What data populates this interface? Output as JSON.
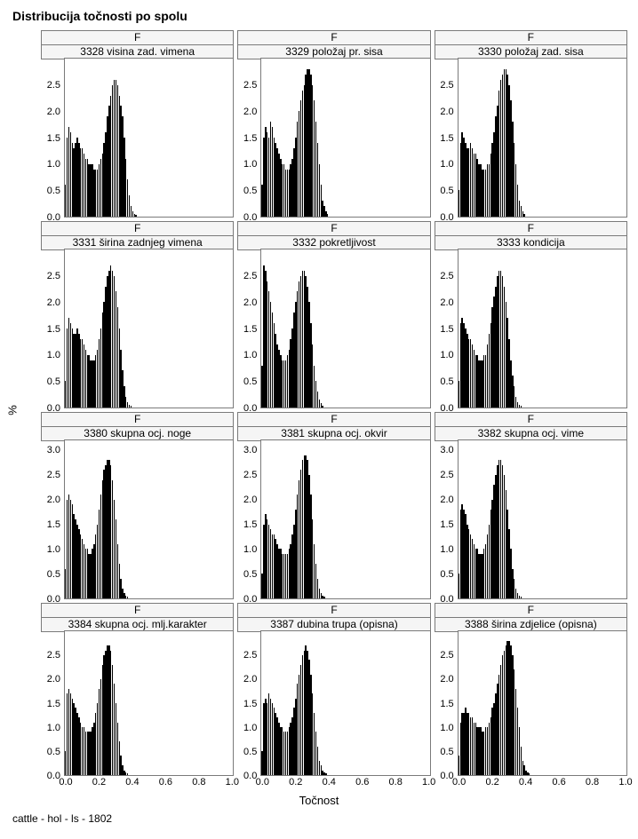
{
  "title": "Distribucija točnosti po spolu",
  "footer": "cattle - hol - ls - 1802",
  "xaxis_label": "Točnost",
  "yaxis_label": "%",
  "layout": {
    "rows": 4,
    "cols": 3
  },
  "colors": {
    "background": "#ffffff",
    "panel_border": "#7a7a7a",
    "header_bg": "#f5f5f5",
    "bar_fill": "#000000",
    "text": "#000000"
  },
  "typography": {
    "title_fontsize": 14,
    "title_weight": "bold",
    "header_fontsize": 12,
    "tick_fontsize": 11,
    "axis_label_fontsize": 13,
    "footer_fontsize": 12,
    "family": "Arial"
  },
  "x": {
    "lim": [
      0.0,
      1.0
    ],
    "ticks": [
      0.0,
      0.2,
      0.4,
      0.6,
      0.8,
      1.0
    ],
    "tick_labels": [
      "0.0",
      "0.2",
      "0.4",
      "0.6",
      "0.8",
      "1.0"
    ]
  },
  "bin_edges_step": 0.01,
  "panels": [
    {
      "group": "F",
      "label": "3328 visina zad. vimena",
      "type": "histogram",
      "ylim": [
        0.0,
        3.0
      ],
      "yticks": [
        0.0,
        0.5,
        1.0,
        1.5,
        2.0,
        2.5
      ],
      "values": [
        0.6,
        1.5,
        1.7,
        1.6,
        1.4,
        1.3,
        1.4,
        1.5,
        1.4,
        1.3,
        1.3,
        1.2,
        1.1,
        1.1,
        1.0,
        1.0,
        1.0,
        0.9,
        0.9,
        0.9,
        1.0,
        1.1,
        1.2,
        1.4,
        1.6,
        1.9,
        2.1,
        2.3,
        2.5,
        2.6,
        2.6,
        2.5,
        2.3,
        2.1,
        1.9,
        1.5,
        1.1,
        0.7,
        0.4,
        0.2,
        0.1,
        0.05,
        0.03,
        0.0,
        0.0,
        0.0,
        0.0,
        0.0,
        0.0,
        0.0
      ]
    },
    {
      "group": "F",
      "label": "3329 položaj pr. sisa",
      "type": "histogram",
      "ylim": [
        0.0,
        3.0
      ],
      "yticks": [
        0.0,
        0.5,
        1.0,
        1.5,
        2.0,
        2.5
      ],
      "values": [
        0.6,
        1.5,
        1.7,
        1.6,
        1.5,
        1.8,
        1.7,
        1.5,
        1.4,
        1.3,
        1.2,
        1.1,
        1.0,
        1.0,
        0.9,
        0.9,
        0.9,
        1.0,
        1.1,
        1.3,
        1.5,
        1.8,
        2.0,
        2.2,
        2.4,
        2.5,
        2.7,
        2.8,
        2.8,
        2.7,
        2.5,
        2.2,
        1.8,
        1.4,
        1.0,
        0.6,
        0.3,
        0.2,
        0.1,
        0.05,
        0.0,
        0.0,
        0.0,
        0.0,
        0.0,
        0.0,
        0.0,
        0.0,
        0.0,
        0.0
      ]
    },
    {
      "group": "F",
      "label": "3330 položaj zad. sisa",
      "type": "histogram",
      "ylim": [
        0.0,
        3.0
      ],
      "yticks": [
        0.0,
        0.5,
        1.0,
        1.5,
        2.0,
        2.5
      ],
      "values": [
        0.5,
        1.4,
        1.6,
        1.5,
        1.4,
        1.3,
        1.3,
        1.4,
        1.3,
        1.2,
        1.2,
        1.1,
        1.0,
        1.0,
        0.9,
        0.9,
        0.9,
        1.0,
        1.0,
        1.2,
        1.4,
        1.6,
        1.9,
        2.1,
        2.4,
        2.6,
        2.7,
        2.8,
        2.8,
        2.7,
        2.5,
        2.2,
        1.8,
        1.4,
        1.0,
        0.6,
        0.3,
        0.2,
        0.1,
        0.05,
        0.0,
        0.0,
        0.0,
        0.0,
        0.0,
        0.0,
        0.0,
        0.0,
        0.0,
        0.0
      ]
    },
    {
      "group": "F",
      "label": "3331 širina zadnjeg vimena",
      "type": "histogram",
      "ylim": [
        0.0,
        3.0
      ],
      "yticks": [
        0.0,
        0.5,
        1.0,
        1.5,
        2.0,
        2.5
      ],
      "values": [
        0.5,
        1.5,
        1.7,
        1.6,
        1.5,
        1.4,
        1.4,
        1.5,
        1.4,
        1.3,
        1.3,
        1.2,
        1.1,
        1.0,
        1.0,
        0.9,
        0.9,
        0.9,
        1.0,
        1.1,
        1.3,
        1.5,
        1.8,
        2.0,
        2.3,
        2.5,
        2.6,
        2.7,
        2.6,
        2.5,
        2.2,
        1.9,
        1.5,
        1.1,
        0.7,
        0.4,
        0.2,
        0.1,
        0.05,
        0.03,
        0.0,
        0.0,
        0.0,
        0.0,
        0.0,
        0.0,
        0.0,
        0.0,
        0.0,
        0.0
      ]
    },
    {
      "group": "F",
      "label": "3332 pokretljivost",
      "type": "histogram",
      "ylim": [
        0.0,
        3.0
      ],
      "yticks": [
        0.0,
        0.5,
        1.0,
        1.5,
        2.0,
        2.5
      ],
      "values": [
        0.8,
        2.7,
        2.6,
        2.4,
        2.2,
        2.0,
        1.8,
        1.6,
        1.4,
        1.2,
        1.1,
        1.0,
        0.9,
        0.9,
        0.9,
        1.0,
        1.1,
        1.3,
        1.5,
        1.8,
        2.0,
        2.2,
        2.4,
        2.5,
        2.6,
        2.6,
        2.5,
        2.3,
        2.0,
        1.6,
        1.2,
        0.8,
        0.5,
        0.3,
        0.15,
        0.08,
        0.04,
        0.0,
        0.0,
        0.0,
        0.0,
        0.0,
        0.0,
        0.0,
        0.0,
        0.0,
        0.0,
        0.0,
        0.0,
        0.0
      ]
    },
    {
      "group": "F",
      "label": "3333 kondicija",
      "type": "histogram",
      "ylim": [
        0.0,
        3.0
      ],
      "yticks": [
        0.0,
        0.5,
        1.0,
        1.5,
        2.0,
        2.5
      ],
      "values": [
        0.5,
        1.6,
        1.7,
        1.6,
        1.5,
        1.4,
        1.3,
        1.3,
        1.2,
        1.1,
        1.0,
        1.0,
        0.9,
        0.9,
        0.9,
        1.0,
        1.0,
        1.2,
        1.4,
        1.6,
        1.9,
        2.1,
        2.3,
        2.5,
        2.6,
        2.6,
        2.5,
        2.3,
        2.0,
        1.7,
        1.3,
        0.9,
        0.6,
        0.4,
        0.2,
        0.1,
        0.05,
        0.03,
        0.0,
        0.0,
        0.0,
        0.0,
        0.0,
        0.0,
        0.0,
        0.0,
        0.0,
        0.0,
        0.0,
        0.0
      ]
    },
    {
      "group": "F",
      "label": "3380 skupna ocj. noge",
      "type": "histogram",
      "ylim": [
        0.0,
        3.2
      ],
      "yticks": [
        0.0,
        0.5,
        1.0,
        1.5,
        2.0,
        2.5,
        3.0
      ],
      "values": [
        0.6,
        2.0,
        2.1,
        2.0,
        1.9,
        1.7,
        1.6,
        1.5,
        1.4,
        1.3,
        1.2,
        1.1,
        1.0,
        1.0,
        0.9,
        0.9,
        1.0,
        1.1,
        1.3,
        1.5,
        1.8,
        2.1,
        2.4,
        2.6,
        2.7,
        2.8,
        2.8,
        2.7,
        2.4,
        2.0,
        1.6,
        1.1,
        0.7,
        0.4,
        0.2,
        0.1,
        0.05,
        0.03,
        0.0,
        0.0,
        0.0,
        0.0,
        0.0,
        0.0,
        0.0,
        0.0,
        0.0,
        0.0,
        0.0,
        0.0
      ]
    },
    {
      "group": "F",
      "label": "3381 skupna ocj. okvir",
      "type": "histogram",
      "ylim": [
        0.0,
        3.2
      ],
      "yticks": [
        0.0,
        0.5,
        1.0,
        1.5,
        2.0,
        2.5,
        3.0
      ],
      "values": [
        0.5,
        1.5,
        1.7,
        1.6,
        1.5,
        1.4,
        1.3,
        1.3,
        1.2,
        1.1,
        1.0,
        1.0,
        0.9,
        0.9,
        0.9,
        0.9,
        1.0,
        1.1,
        1.3,
        1.5,
        1.8,
        2.1,
        2.4,
        2.6,
        2.8,
        2.9,
        2.9,
        2.8,
        2.5,
        2.1,
        1.6,
        1.1,
        0.7,
        0.4,
        0.2,
        0.1,
        0.05,
        0.03,
        0.0,
        0.0,
        0.0,
        0.0,
        0.0,
        0.0,
        0.0,
        0.0,
        0.0,
        0.0,
        0.0,
        0.0
      ]
    },
    {
      "group": "F",
      "label": "3382 skupna ocj. vime",
      "type": "histogram",
      "ylim": [
        0.0,
        3.2
      ],
      "yticks": [
        0.0,
        0.5,
        1.0,
        1.5,
        2.0,
        2.5,
        3.0
      ],
      "values": [
        0.5,
        1.8,
        1.9,
        1.8,
        1.7,
        1.5,
        1.4,
        1.3,
        1.2,
        1.1,
        1.0,
        1.0,
        0.9,
        0.9,
        0.9,
        1.0,
        1.1,
        1.3,
        1.5,
        1.8,
        2.0,
        2.3,
        2.5,
        2.7,
        2.8,
        2.8,
        2.7,
        2.5,
        2.2,
        1.8,
        1.4,
        1.0,
        0.6,
        0.4,
        0.2,
        0.1,
        0.05,
        0.03,
        0.0,
        0.0,
        0.0,
        0.0,
        0.0,
        0.0,
        0.0,
        0.0,
        0.0,
        0.0,
        0.0,
        0.0
      ]
    },
    {
      "group": "F",
      "label": "3384 skupna ocj. mlj.karakter",
      "type": "histogram",
      "ylim": [
        0.0,
        3.0
      ],
      "yticks": [
        0.0,
        0.5,
        1.0,
        1.5,
        2.0,
        2.5
      ],
      "values": [
        0.5,
        1.7,
        1.8,
        1.7,
        1.6,
        1.5,
        1.4,
        1.3,
        1.2,
        1.1,
        1.0,
        1.0,
        0.9,
        0.9,
        0.9,
        0.9,
        1.0,
        1.1,
        1.3,
        1.5,
        1.8,
        2.0,
        2.3,
        2.5,
        2.6,
        2.7,
        2.7,
        2.6,
        2.3,
        1.9,
        1.5,
        1.1,
        0.7,
        0.4,
        0.2,
        0.1,
        0.05,
        0.03,
        0.0,
        0.0,
        0.0,
        0.0,
        0.0,
        0.0,
        0.0,
        0.0,
        0.0,
        0.0,
        0.0,
        0.0
      ]
    },
    {
      "group": "F",
      "label": "3387 dubina trupa (opisna)",
      "type": "histogram",
      "ylim": [
        0.0,
        3.0
      ],
      "yticks": [
        0.0,
        0.5,
        1.0,
        1.5,
        2.0,
        2.5
      ],
      "values": [
        0.5,
        1.5,
        1.6,
        1.5,
        1.7,
        1.6,
        1.5,
        1.4,
        1.3,
        1.2,
        1.1,
        1.0,
        1.0,
        0.9,
        0.9,
        0.9,
        1.0,
        1.1,
        1.2,
        1.4,
        1.6,
        1.9,
        2.1,
        2.3,
        2.5,
        2.6,
        2.7,
        2.6,
        2.4,
        2.1,
        1.7,
        1.3,
        0.9,
        0.6,
        0.3,
        0.2,
        0.1,
        0.05,
        0.03,
        0.0,
        0.0,
        0.0,
        0.0,
        0.0,
        0.0,
        0.0,
        0.0,
        0.0,
        0.0,
        0.0
      ]
    },
    {
      "group": "F",
      "label": "3388 širina zdjelice (opisna)",
      "type": "histogram",
      "ylim": [
        0.0,
        3.0
      ],
      "yticks": [
        0.0,
        0.5,
        1.0,
        1.5,
        2.0,
        2.5
      ],
      "values": [
        0.4,
        1.1,
        1.3,
        1.3,
        1.4,
        1.3,
        1.3,
        1.2,
        1.2,
        1.1,
        1.1,
        1.0,
        1.0,
        1.0,
        0.9,
        0.9,
        1.0,
        1.0,
        1.1,
        1.2,
        1.4,
        1.5,
        1.7,
        1.9,
        2.1,
        2.3,
        2.5,
        2.6,
        2.7,
        2.8,
        2.8,
        2.7,
        2.5,
        2.2,
        1.8,
        1.4,
        1.0,
        0.6,
        0.3,
        0.2,
        0.1,
        0.05,
        0.03,
        0.0,
        0.0,
        0.0,
        0.0,
        0.0,
        0.0,
        0.0
      ]
    }
  ]
}
